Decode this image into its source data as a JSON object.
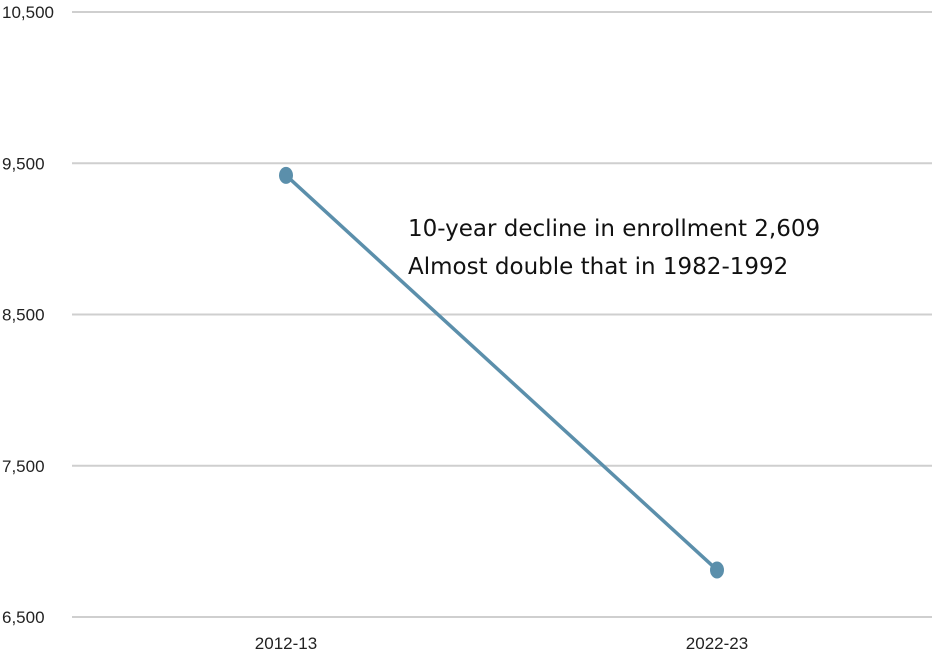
{
  "chart_data": {
    "type": "line",
    "title": "",
    "xlabel": "",
    "ylabel": "",
    "categories": [
      "2012-13",
      "2022-23"
    ],
    "series": [
      {
        "values": [
          9420,
          6811
        ],
        "color": "#5b8fab"
      }
    ],
    "ylim": [
      6500,
      10500
    ],
    "yticks": [
      6500,
      7500,
      8500,
      9500,
      10500
    ],
    "ytick_labels": [
      "6,500",
      "7,500",
      "8,500",
      "9,500",
      "10,500"
    ],
    "grid": true,
    "legend": "none",
    "annotations": [
      "10-year decline in enrollment 2,609",
      "Almost double that in 1982-1992"
    ]
  }
}
